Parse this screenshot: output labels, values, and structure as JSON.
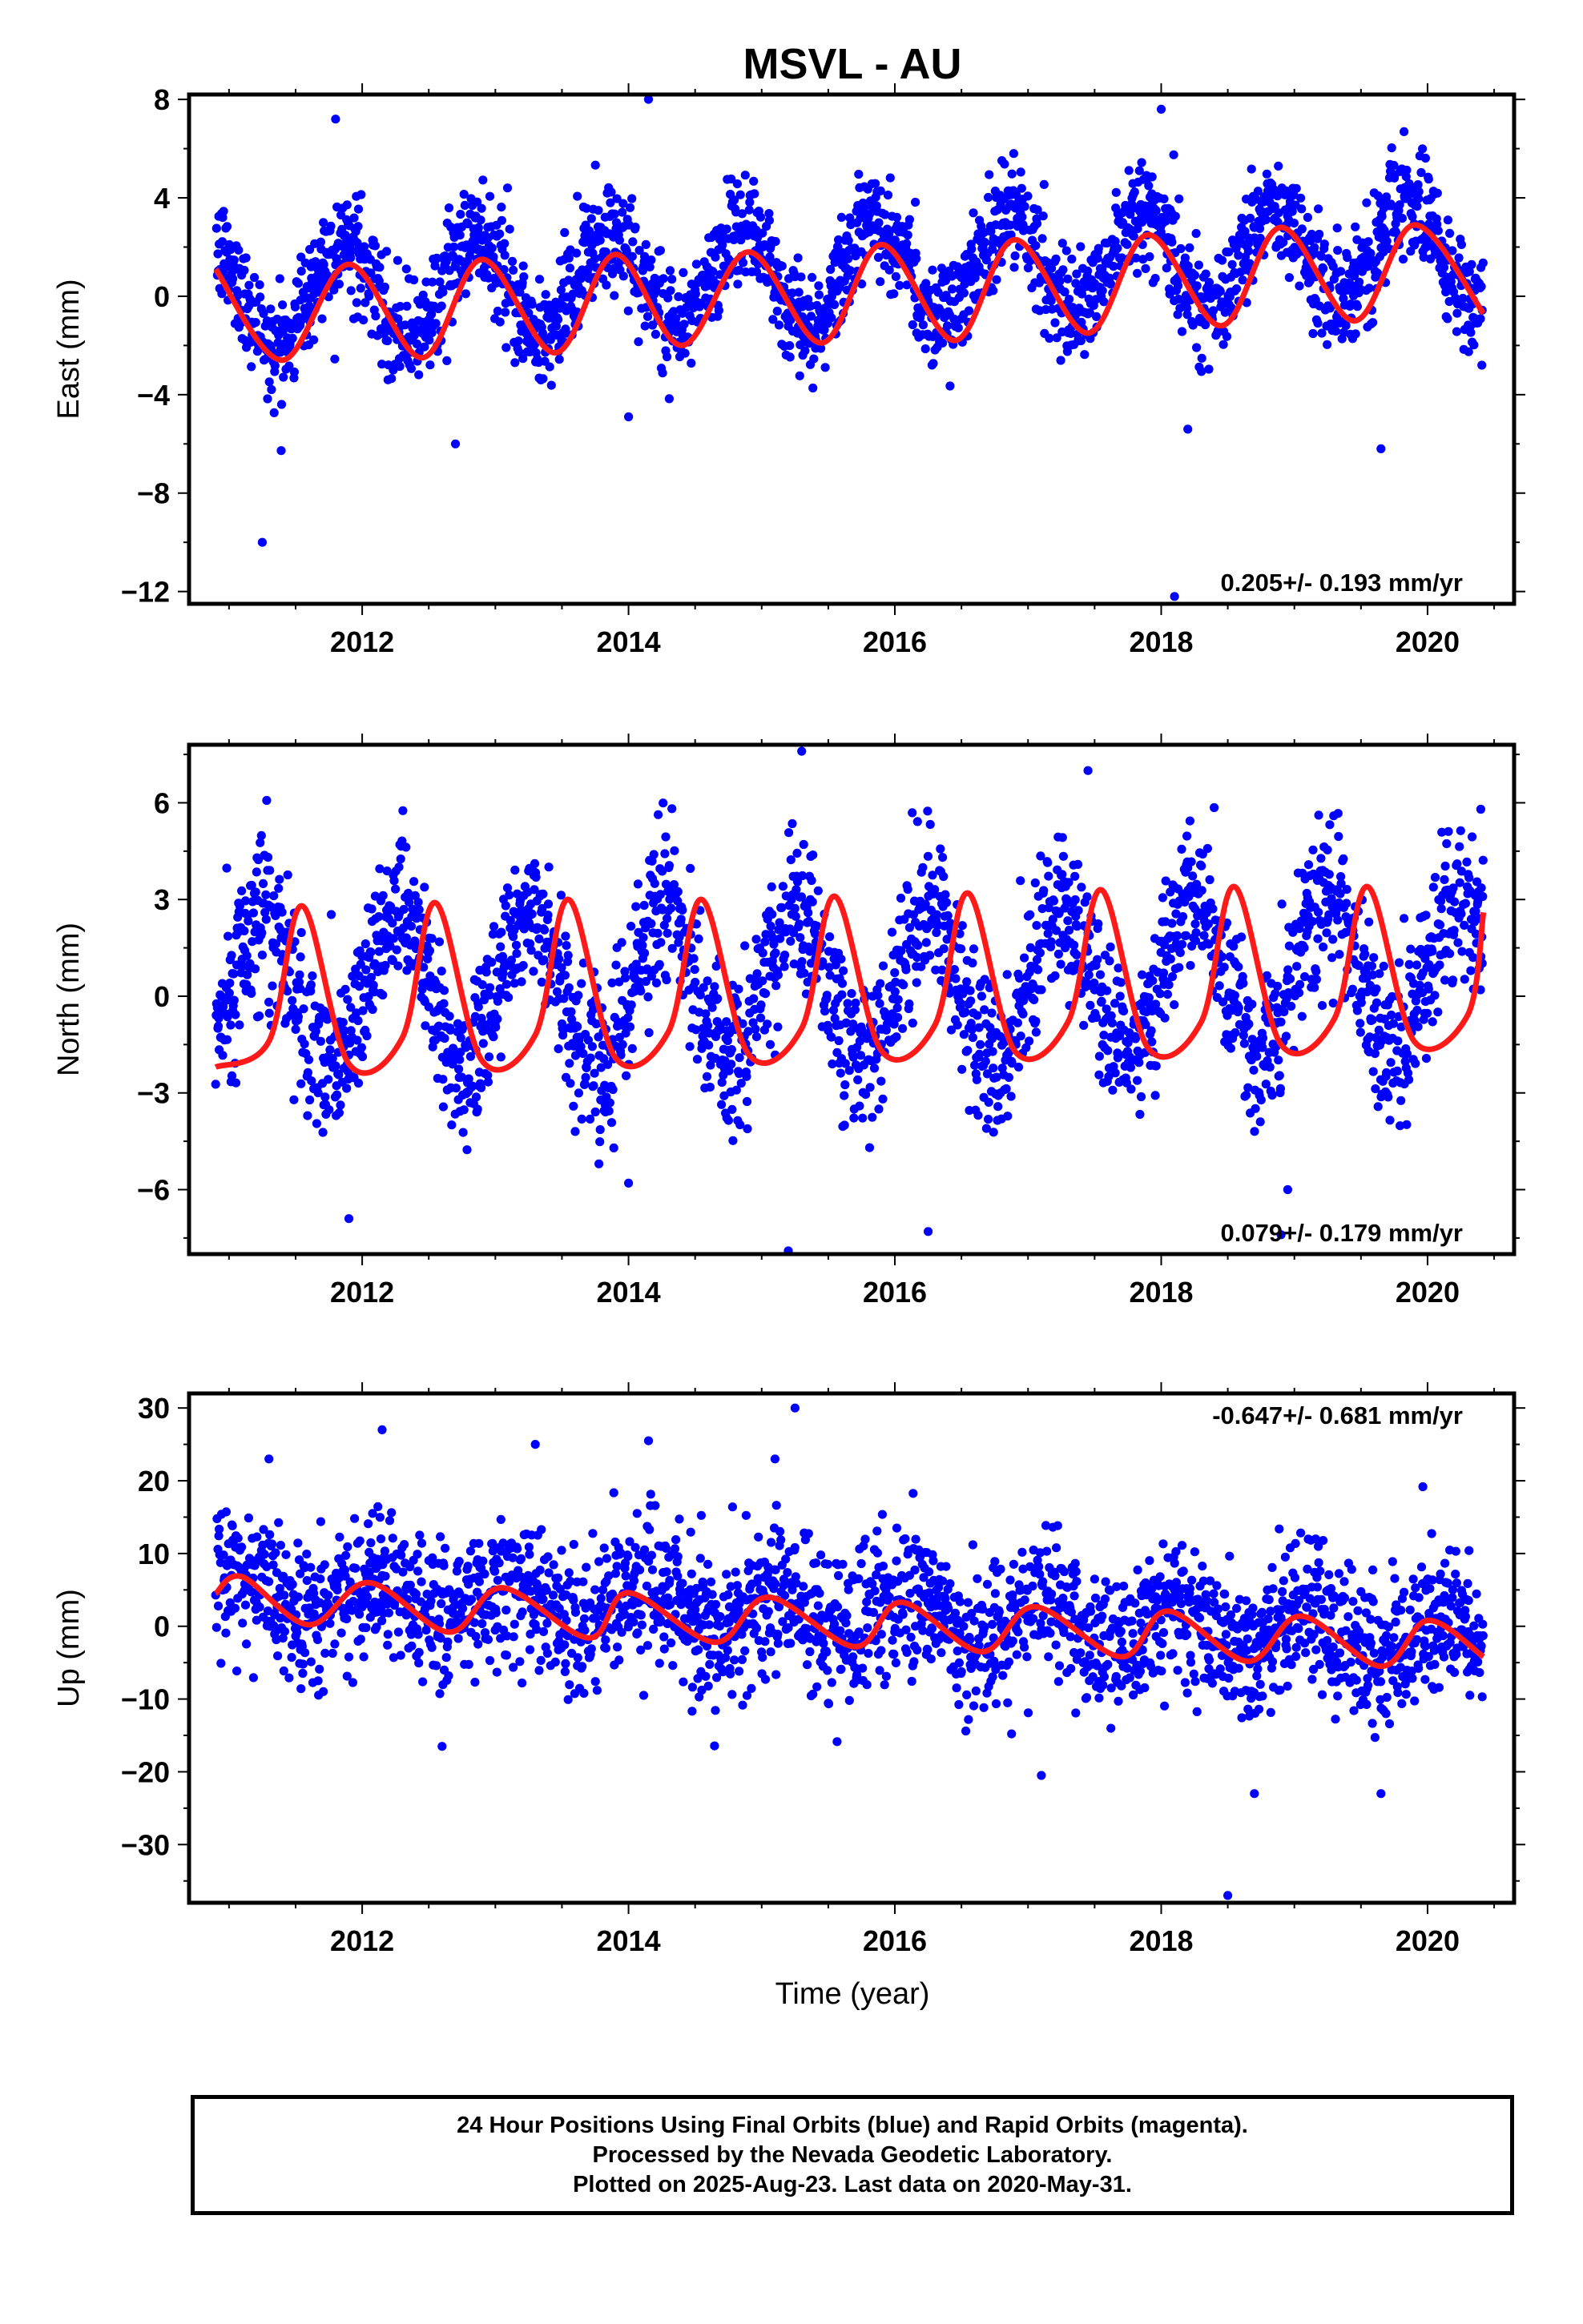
{
  "colors": {
    "points": "#0000ff",
    "fit": "#ff1a1a",
    "frame": "#000000"
  },
  "chart_data": [
    {
      "type": "scatter",
      "title": "MSVL - AU",
      "ylabel": "East (mm)",
      "xlabel": "",
      "xlim": [
        2010.7,
        2020.65
      ],
      "ylim": [
        -12.5,
        8.2
      ],
      "xticks": [
        2012,
        2014,
        2016,
        2018,
        2020
      ],
      "yticks": [
        -12,
        -8,
        -4,
        0,
        4,
        8
      ],
      "ytick_labels": [
        "−12",
        "−8",
        "−4",
        "0",
        "4",
        "8"
      ],
      "rate_label": "0.205+/- 0.193 mm/yr",
      "rate_position": "bottom-right",
      "data_span": [
        2010.9,
        2020.42
      ],
      "series": [
        {
          "kind": "points",
          "trend": 0.205,
          "offset": 0.0,
          "amplitude": 2.0,
          "phase": 0.85,
          "scatter": 1.1,
          "outliers": [
            [
              2012.7,
              -6.0
            ],
            [
              2011.25,
              -10.0
            ],
            [
              2014.15,
              8.0
            ],
            [
              2014.0,
              -4.9
            ],
            [
              2018.2,
              -5.4
            ],
            [
              2019.65,
              -6.2
            ],
            [
              2018.1,
              -12.2
            ],
            [
              2011.8,
              7.2
            ],
            [
              2018.0,
              7.6
            ]
          ]
        },
        {
          "kind": "fit",
          "fit_points": [
            [
              2010.9,
              1.1
            ],
            [
              2011.4,
              -2.6
            ],
            [
              2011.9,
              1.3
            ],
            [
              2012.45,
              -2.5
            ],
            [
              2012.9,
              1.5
            ],
            [
              2013.45,
              -2.3
            ],
            [
              2013.9,
              1.7
            ],
            [
              2014.4,
              -2.0
            ],
            [
              2014.9,
              1.8
            ],
            [
              2015.45,
              -1.9
            ],
            [
              2015.9,
              2.1
            ],
            [
              2016.45,
              -1.8
            ],
            [
              2016.9,
              2.3
            ],
            [
              2017.45,
              -1.5
            ],
            [
              2017.9,
              2.5
            ],
            [
              2018.45,
              -1.2
            ],
            [
              2018.9,
              2.8
            ],
            [
              2019.45,
              -1.0
            ],
            [
              2019.9,
              2.9
            ],
            [
              2020.42,
              -0.7
            ]
          ]
        }
      ]
    },
    {
      "type": "scatter",
      "ylabel": "North (mm)",
      "xlabel": "",
      "xlim": [
        2010.7,
        2020.65
      ],
      "ylim": [
        -8.0,
        7.8
      ],
      "xticks": [
        2012,
        2014,
        2016,
        2018,
        2020
      ],
      "yticks": [
        -6,
        -3,
        0,
        3,
        6
      ],
      "ytick_labels": [
        "−6",
        "−3",
        "0",
        "3",
        "6"
      ],
      "rate_label": "0.079+/- 0.179 mm/yr",
      "rate_position": "bottom-right",
      "data_span": [
        2010.9,
        2020.42
      ],
      "series": [
        {
          "kind": "points",
          "trend": 0.079,
          "offset": 0.0,
          "amplitude": 2.4,
          "phase": 0.25,
          "scatter": 1.2,
          "outliers": [
            [
              2011.9,
              -6.9
            ],
            [
              2015.2,
              -7.9
            ],
            [
              2015.3,
              7.6
            ],
            [
              2016.25,
              -7.3
            ],
            [
              2017.45,
              7.0
            ],
            [
              2014.0,
              -5.8
            ],
            [
              2018.95,
              -6.0
            ],
            [
              2020.4,
              5.8
            ],
            [
              2018.9,
              -7.4
            ]
          ]
        },
        {
          "kind": "fit",
          "fit_points": [
            [
              2010.9,
              -2.2
            ],
            [
              2011.3,
              -1.4
            ],
            [
              2011.55,
              2.8
            ],
            [
              2011.9,
              -2.1
            ],
            [
              2012.3,
              -1.3
            ],
            [
              2012.55,
              2.9
            ],
            [
              2012.9,
              -2.0
            ],
            [
              2013.3,
              -1.2
            ],
            [
              2013.55,
              3.0
            ],
            [
              2013.9,
              -1.9
            ],
            [
              2014.3,
              -1.1
            ],
            [
              2014.55,
              3.0
            ],
            [
              2014.9,
              -1.8
            ],
            [
              2015.3,
              -1.0
            ],
            [
              2015.55,
              3.1
            ],
            [
              2015.9,
              -1.7
            ],
            [
              2016.3,
              -0.9
            ],
            [
              2016.55,
              3.2
            ],
            [
              2016.9,
              -1.7
            ],
            [
              2017.3,
              -0.8
            ],
            [
              2017.55,
              3.3
            ],
            [
              2017.9,
              -1.6
            ],
            [
              2018.3,
              -0.8
            ],
            [
              2018.55,
              3.4
            ],
            [
              2018.9,
              -1.5
            ],
            [
              2019.3,
              -0.7
            ],
            [
              2019.55,
              3.4
            ],
            [
              2019.9,
              -1.4
            ],
            [
              2020.3,
              -0.6
            ],
            [
              2020.42,
              2.6
            ]
          ]
        }
      ]
    },
    {
      "type": "scatter",
      "ylabel": "Up (mm)",
      "xlabel": "Time (year)",
      "xlim": [
        2010.7,
        2020.65
      ],
      "ylim": [
        -38,
        32
      ],
      "xticks": [
        2012,
        2014,
        2016,
        2018,
        2020
      ],
      "yticks": [
        -30,
        -20,
        -10,
        0,
        10,
        20,
        30
      ],
      "ytick_labels": [
        "−30",
        "−20",
        "−10",
        "0",
        "10",
        "20",
        "30"
      ],
      "rate_label": "-0.647+/- 0.681 mm/yr",
      "rate_position": "top-right",
      "data_span": [
        2010.9,
        2020.42
      ],
      "series": [
        {
          "kind": "points",
          "trend": -0.647,
          "offset": 4.5,
          "amplitude": 2.8,
          "phase": 0.1,
          "scatter": 5.0,
          "outliers": [
            [
              2015.25,
              30.0
            ],
            [
              2012.15,
              27.0
            ],
            [
              2018.5,
              -37.0
            ],
            [
              2012.6,
              -16.5
            ],
            [
              2018.7,
              -23.0
            ],
            [
              2019.65,
              -23.0
            ],
            [
              2017.1,
              -20.5
            ],
            [
              2014.15,
              25.5
            ],
            [
              2013.3,
              25.0
            ],
            [
              2011.3,
              23.0
            ],
            [
              2015.1,
              23.0
            ]
          ]
        },
        {
          "kind": "fit",
          "fit_points": [
            [
              2010.9,
              4.5
            ],
            [
              2011.1,
              6.8
            ],
            [
              2011.6,
              0.2
            ],
            [
              2012.05,
              6.0
            ],
            [
              2012.65,
              -0.8
            ],
            [
              2013.05,
              5.3
            ],
            [
              2013.7,
              -1.6
            ],
            [
              2014.0,
              4.6
            ],
            [
              2014.65,
              -2.2
            ],
            [
              2015.05,
              4.0
            ],
            [
              2015.7,
              -2.8
            ],
            [
              2016.05,
              3.3
            ],
            [
              2016.65,
              -3.5
            ],
            [
              2017.05,
              2.7
            ],
            [
              2017.7,
              -4.2
            ],
            [
              2018.05,
              2.1
            ],
            [
              2018.65,
              -4.8
            ],
            [
              2019.05,
              1.4
            ],
            [
              2019.65,
              -5.5
            ],
            [
              2020.0,
              0.8
            ],
            [
              2020.42,
              -4.2
            ]
          ]
        }
      ]
    }
  ],
  "caption": {
    "line1": "24 Hour Positions Using Final Orbits (blue) and Rapid Orbits (magenta).",
    "line2": "Processed by the Nevada Geodetic Laboratory.",
    "line3": "Plotted on 2025-Aug-23. Last data on 2020-May-31."
  }
}
